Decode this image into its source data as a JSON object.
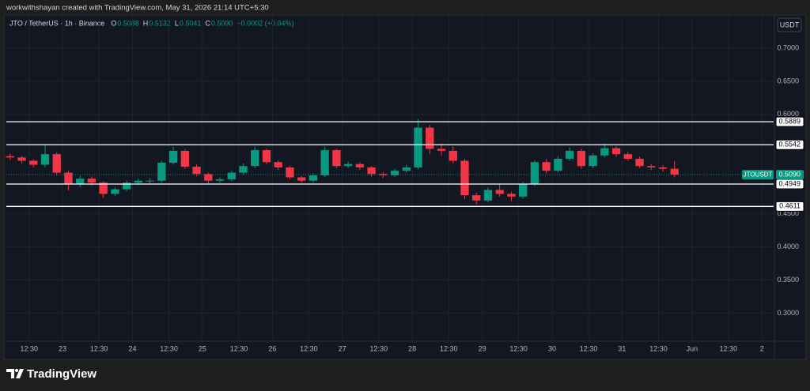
{
  "header": "workwithshayan created with TradingView.com, May 31, 2026 21:14 UTC+5:30",
  "footer_brand": "TradingView",
  "currency_button": "USDT",
  "chart_data": {
    "type": "candlestick",
    "legend": {
      "symbol": "JTO / TetherUS · 1h · Binance",
      "ohlc": [
        {
          "key": "O",
          "value": "0.5088"
        },
        {
          "key": "H",
          "value": "0.5132"
        },
        {
          "key": "L",
          "value": "0.5041"
        },
        {
          "key": "C",
          "value": "0.5090"
        }
      ],
      "change": "+0.0002 (+0.04%)"
    },
    "x": [
      -18,
      -14,
      -10,
      -6,
      -2,
      2,
      6,
      10,
      14,
      18,
      22,
      26,
      30,
      34,
      38,
      42,
      46,
      50,
      54,
      58,
      62,
      66,
      70,
      74,
      78,
      82,
      86,
      90,
      94,
      98,
      102,
      106,
      110,
      114,
      118,
      122,
      126,
      130,
      134,
      138,
      142,
      146,
      150,
      154,
      158,
      162,
      166,
      170,
      174,
      178,
      182,
      186,
      190,
      194,
      198,
      202,
      206,
      210
    ],
    "open": [
      0.537,
      0.535,
      0.53,
      0.524,
      0.54,
      0.512,
      0.495,
      0.503,
      0.497,
      0.48,
      0.487,
      0.497,
      0.5,
      0.5,
      0.527,
      0.545,
      0.521,
      0.51,
      0.5,
      0.502,
      0.512,
      0.522,
      0.546,
      0.528,
      0.52,
      0.505,
      0.5,
      0.508,
      0.546,
      0.522,
      0.525,
      0.52,
      0.51,
      0.508,
      0.515,
      0.52,
      0.58,
      0.548,
      0.545,
      0.53,
      0.478,
      0.47,
      0.486,
      0.48,
      0.476,
      0.495,
      0.528,
      0.515,
      0.533,
      0.545,
      0.522,
      0.538,
      0.549,
      0.54,
      0.533,
      0.522,
      0.52,
      0.518
    ],
    "high": [
      0.541,
      0.537,
      0.532,
      0.553,
      0.543,
      0.515,
      0.507,
      0.506,
      0.499,
      0.49,
      0.5,
      0.503,
      0.504,
      0.53,
      0.551,
      0.547,
      0.524,
      0.512,
      0.505,
      0.515,
      0.526,
      0.551,
      0.548,
      0.531,
      0.522,
      0.507,
      0.511,
      0.551,
      0.548,
      0.529,
      0.528,
      0.522,
      0.513,
      0.518,
      0.524,
      0.593,
      0.584,
      0.556,
      0.552,
      0.533,
      0.482,
      0.49,
      0.495,
      0.483,
      0.498,
      0.531,
      0.533,
      0.537,
      0.55,
      0.548,
      0.541,
      0.556,
      0.552,
      0.543,
      0.536,
      0.525,
      0.523,
      0.53
    ],
    "low": [
      0.531,
      0.526,
      0.52,
      0.52,
      0.508,
      0.485,
      0.49,
      0.493,
      0.474,
      0.477,
      0.484,
      0.494,
      0.496,
      0.497,
      0.524,
      0.518,
      0.507,
      0.496,
      0.497,
      0.499,
      0.509,
      0.519,
      0.525,
      0.516,
      0.502,
      0.497,
      0.497,
      0.505,
      0.519,
      0.519,
      0.516,
      0.506,
      0.504,
      0.505,
      0.512,
      0.517,
      0.54,
      0.538,
      0.526,
      0.472,
      0.464,
      0.467,
      0.476,
      0.469,
      0.473,
      0.492,
      0.511,
      0.512,
      0.53,
      0.518,
      0.519,
      0.535,
      0.536,
      0.53,
      0.519,
      0.516,
      0.514,
      0.505
    ],
    "close": [
      0.535,
      0.53,
      0.524,
      0.54,
      0.512,
      0.495,
      0.503,
      0.497,
      0.48,
      0.487,
      0.497,
      0.5,
      0.5,
      0.527,
      0.545,
      0.521,
      0.51,
      0.5,
      0.502,
      0.512,
      0.522,
      0.546,
      0.528,
      0.52,
      0.505,
      0.5,
      0.508,
      0.546,
      0.522,
      0.525,
      0.52,
      0.51,
      0.508,
      0.515,
      0.52,
      0.58,
      0.548,
      0.545,
      0.53,
      0.478,
      0.47,
      0.486,
      0.48,
      0.476,
      0.495,
      0.528,
      0.515,
      0.533,
      0.545,
      0.522,
      0.538,
      0.549,
      0.54,
      0.533,
      0.522,
      0.52,
      0.518,
      0.509
    ],
    "up_color": "#089981",
    "down_color": "#f23645",
    "xlim": [
      -19.3,
      244
    ],
    "ylim": [
      0.26,
      0.75
    ],
    "yticks": [
      {
        "value": 0.7,
        "label": "0.7000"
      },
      {
        "value": 0.65,
        "label": "0.6500"
      },
      {
        "value": 0.6,
        "label": "0.6000"
      },
      {
        "value": 0.45,
        "label": "0.4500"
      },
      {
        "value": 0.4,
        "label": "0.4000"
      },
      {
        "value": 0.35,
        "label": "0.3500"
      },
      {
        "value": 0.3,
        "label": "0.3000"
      }
    ],
    "xticks": [
      {
        "value": -11.5,
        "label": "12:30"
      },
      {
        "value": 0,
        "label": "23"
      },
      {
        "value": 12.5,
        "label": "12:30"
      },
      {
        "value": 24,
        "label": "24"
      },
      {
        "value": 36.5,
        "label": "12:30"
      },
      {
        "value": 48,
        "label": "25"
      },
      {
        "value": 60.5,
        "label": "12:30"
      },
      {
        "value": 72,
        "label": "26"
      },
      {
        "value": 84.5,
        "label": "12:30"
      },
      {
        "value": 96,
        "label": "27"
      },
      {
        "value": 108.5,
        "label": "12:30"
      },
      {
        "value": 120,
        "label": "28"
      },
      {
        "value": 132.5,
        "label": "12:30"
      },
      {
        "value": 144,
        "label": "29"
      },
      {
        "value": 156.5,
        "label": "12:30"
      },
      {
        "value": 168,
        "label": "30"
      },
      {
        "value": 180.5,
        "label": "12:30"
      },
      {
        "value": 192,
        "label": "31"
      },
      {
        "value": 204.5,
        "label": "12:30"
      },
      {
        "value": 216,
        "label": "Jun"
      },
      {
        "value": 228.5,
        "label": "12:30"
      },
      {
        "value": 240,
        "label": "2"
      }
    ],
    "grid": true,
    "levels": [
      {
        "value": 0.5889,
        "label": "0.5889"
      },
      {
        "value": 0.5542,
        "label": "0.5542"
      },
      {
        "value": 0.4949,
        "label": "0.4949"
      },
      {
        "value": 0.4611,
        "label": "0.4611"
      }
    ],
    "last_price": {
      "symbol": "JTOUSDT",
      "value": 0.509,
      "label": "0.5090"
    }
  }
}
